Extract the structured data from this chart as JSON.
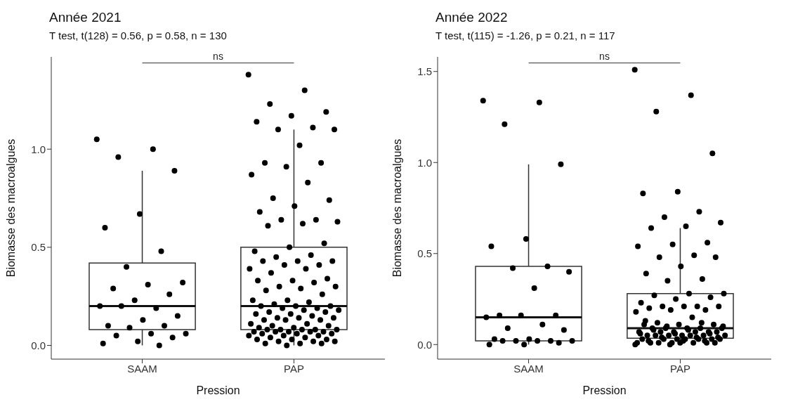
{
  "chart_data": [
    {
      "type": "box",
      "title": "Année 2021",
      "subtitle": "T test, t(128) = 0.56, p = 0.58, n = 130",
      "xlabel": "Pression",
      "ylabel": "Biomasse des macroalgues",
      "categories": [
        "SAAM",
        "PAP"
      ],
      "ylim": [
        -0.07,
        1.47
      ],
      "yticks": [
        {
          "value": 0,
          "label": "0.0"
        },
        {
          "value": 0.5,
          "label": "0.5"
        },
        {
          "value": 1,
          "label": "1.0"
        }
      ],
      "grid": false,
      "legend": false,
      "annotations": [
        "ns"
      ],
      "boxes": [
        {
          "low": 0,
          "q1": 0.08,
          "median": 0.2,
          "q3": 0.42,
          "high": 0.89
        },
        {
          "low": 0,
          "q1": 0.08,
          "median": 0.2,
          "q3": 0.5,
          "high": 1.1
        }
      ],
      "series": [
        {
          "type": "scatter",
          "color": "#000000",
          "x": [
            "SAAM",
            "SAAM",
            "SAAM",
            "SAAM",
            "SAAM",
            "SAAM",
            "SAAM",
            "SAAM",
            "SAAM",
            "SAAM",
            "SAAM",
            "SAAM",
            "SAAM",
            "SAAM",
            "SAAM",
            "SAAM",
            "SAAM",
            "SAAM",
            "SAAM",
            "SAAM",
            "SAAM",
            "SAAM",
            "SAAM",
            "SAAM",
            "SAAM",
            "SAAM",
            "SAAM",
            "SAAM"
          ],
          "values": [
            1.05,
            1.0,
            0.96,
            0.89,
            0.67,
            0.6,
            0.48,
            0.4,
            0.32,
            0.31,
            0.29,
            0.26,
            0.23,
            0.2,
            0.19,
            0.2,
            0.15,
            0.13,
            0.1,
            0.1,
            0.09,
            0.06,
            0.06,
            0.05,
            0.04,
            0.02,
            0.01,
            0.0
          ]
        },
        {
          "type": "scatter",
          "color": "#000000",
          "x": [
            "PAP",
            "PAP",
            "PAP",
            "PAP",
            "PAP",
            "PAP",
            "PAP",
            "PAP",
            "PAP",
            "PAP",
            "PAP",
            "PAP",
            "PAP",
            "PAP",
            "PAP",
            "PAP",
            "PAP",
            "PAP",
            "PAP",
            "PAP",
            "PAP",
            "PAP",
            "PAP",
            "PAP",
            "PAP",
            "PAP",
            "PAP",
            "PAP",
            "PAP",
            "PAP",
            "PAP",
            "PAP",
            "PAP",
            "PAP",
            "PAP",
            "PAP",
            "PAP",
            "PAP",
            "PAP",
            "PAP",
            "PAP",
            "PAP",
            "PAP",
            "PAP",
            "PAP",
            "PAP",
            "PAP",
            "PAP",
            "PAP",
            "PAP",
            "PAP",
            "PAP",
            "PAP",
            "PAP",
            "PAP",
            "PAP",
            "PAP",
            "PAP",
            "PAP",
            "PAP",
            "PAP",
            "PAP",
            "PAP",
            "PAP",
            "PAP",
            "PAP",
            "PAP",
            "PAP",
            "PAP",
            "PAP",
            "PAP",
            "PAP",
            "PAP",
            "PAP",
            "PAP",
            "PAP",
            "PAP",
            "PAP",
            "PAP",
            "PAP",
            "PAP",
            "PAP",
            "PAP",
            "PAP",
            "PAP",
            "PAP",
            "PAP",
            "PAP",
            "PAP",
            "PAP",
            "PAP",
            "PAP",
            "PAP",
            "PAP",
            "PAP",
            "PAP",
            "PAP",
            "PAP",
            "PAP",
            "PAP",
            "PAP",
            "PAP"
          ],
          "values": [
            1.38,
            1.3,
            1.23,
            1.19,
            1.17,
            1.14,
            1.11,
            1.1,
            1.1,
            1.02,
            0.93,
            0.93,
            0.91,
            0.87,
            0.83,
            0.75,
            0.74,
            0.71,
            0.68,
            0.64,
            0.64,
            0.63,
            0.62,
            0.61,
            0.52,
            0.5,
            0.48,
            0.46,
            0.45,
            0.43,
            0.43,
            0.43,
            0.41,
            0.41,
            0.39,
            0.39,
            0.37,
            0.34,
            0.33,
            0.33,
            0.32,
            0.3,
            0.3,
            0.29,
            0.28,
            0.26,
            0.23,
            0.23,
            0.22,
            0.21,
            0.2,
            0.2,
            0.2,
            0.19,
            0.19,
            0.18,
            0.18,
            0.17,
            0.17,
            0.16,
            0.16,
            0.15,
            0.14,
            0.14,
            0.14,
            0.13,
            0.13,
            0.13,
            0.11,
            0.11,
            0.1,
            0.1,
            0.09,
            0.09,
            0.08,
            0.08,
            0.08,
            0.08,
            0.08,
            0.07,
            0.07,
            0.07,
            0.07,
            0.07,
            0.06,
            0.06,
            0.06,
            0.05,
            0.05,
            0.05,
            0.04,
            0.04,
            0.03,
            0.03,
            0.03,
            0.02,
            0.02,
            0.02,
            0.01,
            0.01,
            0.01,
            0.0
          ]
        }
      ]
    },
    {
      "type": "box",
      "title": "Année 2022",
      "subtitle": "T test, t(115) = -1.26, p = 0.21, n = 117",
      "xlabel": "Pression",
      "ylabel": "Biomasse des macroalgues",
      "categories": [
        "SAAM",
        "PAP"
      ],
      "ylim": [
        -0.08,
        1.58
      ],
      "yticks": [
        {
          "value": 0,
          "label": "0.0"
        },
        {
          "value": 0.5,
          "label": "0.5"
        },
        {
          "value": 1,
          "label": "1.0"
        },
        {
          "value": 1.5,
          "label": "1.5"
        }
      ],
      "grid": false,
      "legend": false,
      "annotations": [
        "ns"
      ],
      "boxes": [
        {
          "low": 0,
          "q1": 0.02,
          "median": 0.15,
          "q3": 0.43,
          "high": 0.99
        },
        {
          "low": 0,
          "q1": 0.035,
          "median": 0.09,
          "q3": 0.28,
          "high": 0.64
        }
      ],
      "series": [
        {
          "type": "scatter",
          "color": "#000000",
          "x": [
            "SAAM",
            "SAAM",
            "SAAM",
            "SAAM",
            "SAAM",
            "SAAM",
            "SAAM",
            "SAAM",
            "SAAM",
            "SAAM",
            "SAAM",
            "SAAM",
            "SAAM",
            "SAAM",
            "SAAM",
            "SAAM",
            "SAAM",
            "SAAM",
            "SAAM",
            "SAAM",
            "SAAM",
            "SAAM",
            "SAAM",
            "SAAM",
            "SAAM",
            "SAAM",
            "SAAM"
          ],
          "values": [
            1.34,
            1.33,
            1.21,
            0.99,
            0.58,
            0.54,
            0.43,
            0.42,
            0.4,
            0.31,
            0.16,
            0.16,
            0.16,
            0.15,
            0.11,
            0.09,
            0.08,
            0.03,
            0.03,
            0.02,
            0.02,
            0.02,
            0.02,
            0.02,
            0.01,
            0.0,
            0.0
          ]
        },
        {
          "type": "scatter",
          "color": "#000000",
          "x": [
            "PAP",
            "PAP",
            "PAP",
            "PAP",
            "PAP",
            "PAP",
            "PAP",
            "PAP",
            "PAP",
            "PAP",
            "PAP",
            "PAP",
            "PAP",
            "PAP",
            "PAP",
            "PAP",
            "PAP",
            "PAP",
            "PAP",
            "PAP",
            "PAP",
            "PAP",
            "PAP",
            "PAP",
            "PAP",
            "PAP",
            "PAP",
            "PAP",
            "PAP",
            "PAP",
            "PAP",
            "PAP",
            "PAP",
            "PAP",
            "PAP",
            "PAP",
            "PAP",
            "PAP",
            "PAP",
            "PAP",
            "PAP",
            "PAP",
            "PAP",
            "PAP",
            "PAP",
            "PAP",
            "PAP",
            "PAP",
            "PAP",
            "PAP",
            "PAP",
            "PAP",
            "PAP",
            "PAP",
            "PAP",
            "PAP",
            "PAP",
            "PAP",
            "PAP",
            "PAP",
            "PAP",
            "PAP",
            "PAP",
            "PAP",
            "PAP",
            "PAP",
            "PAP",
            "PAP",
            "PAP",
            "PAP",
            "PAP",
            "PAP",
            "PAP",
            "PAP",
            "PAP",
            "PAP",
            "PAP",
            "PAP",
            "PAP",
            "PAP",
            "PAP",
            "PAP",
            "PAP",
            "PAP",
            "PAP",
            "PAP",
            "PAP",
            "PAP",
            "PAP",
            "PAP"
          ],
          "values": [
            1.51,
            1.37,
            1.28,
            1.05,
            0.84,
            0.83,
            0.73,
            0.7,
            0.67,
            0.65,
            0.64,
            0.56,
            0.55,
            0.54,
            0.49,
            0.48,
            0.48,
            0.43,
            0.39,
            0.36,
            0.35,
            0.28,
            0.28,
            0.27,
            0.26,
            0.25,
            0.23,
            0.21,
            0.21,
            0.21,
            0.21,
            0.2,
            0.19,
            0.19,
            0.18,
            0.15,
            0.12,
            0.11,
            0.11,
            0.11,
            0.09,
            0.09,
            0.09,
            0.09,
            0.09,
            0.07,
            0.07,
            0.07,
            0.07,
            0.07,
            0.07,
            0.05,
            0.05,
            0.05,
            0.05,
            0.05,
            0.05,
            0.05,
            0.03,
            0.03,
            0.03,
            0.03,
            0.03,
            0.03,
            0.03,
            0.01,
            0.01,
            0.01,
            0.01,
            0.01,
            0.01,
            0.01,
            0.01,
            0.13,
            0.12,
            0.1,
            0.1,
            0.08,
            0.08,
            0.06,
            0.06,
            0.06,
            0.04,
            0.04,
            0.04,
            0.02,
            0.02,
            0.02,
            0.0,
            0.0
          ]
        }
      ]
    }
  ]
}
